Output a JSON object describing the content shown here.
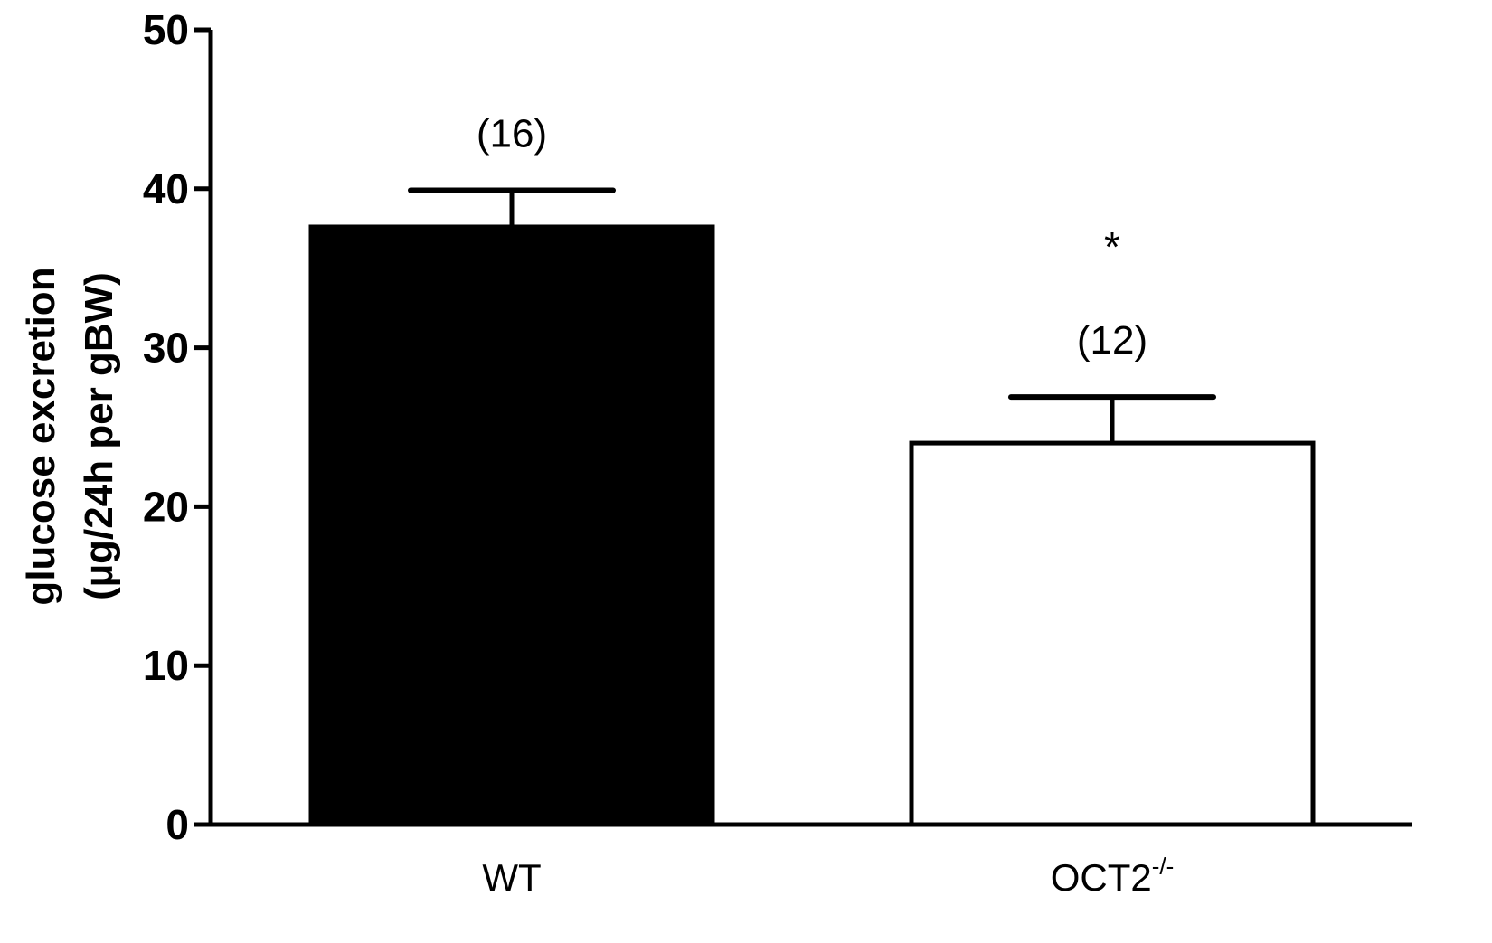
{
  "chart_data": {
    "type": "bar",
    "title": "",
    "xlabel": "",
    "ylabel": [
      "glucose excretion",
      "(µg/24h per gBW)"
    ],
    "ylim": [
      0,
      50
    ],
    "yticks": [
      0,
      10,
      20,
      30,
      40,
      50
    ],
    "grid": false,
    "categories": [
      {
        "label": "WT",
        "sup": ""
      },
      {
        "label": "OCT2",
        "sup": "-/-"
      }
    ],
    "values": [
      37.6,
      24.0
    ],
    "errors": [
      2.3,
      2.9
    ],
    "n_labels": [
      "(16)",
      "(12)"
    ],
    "significance": [
      "",
      "*"
    ],
    "colors": {
      "bar_fill": [
        "#000000",
        "#ffffff"
      ],
      "bar_stroke": "#000000",
      "axis": "#000000"
    }
  }
}
